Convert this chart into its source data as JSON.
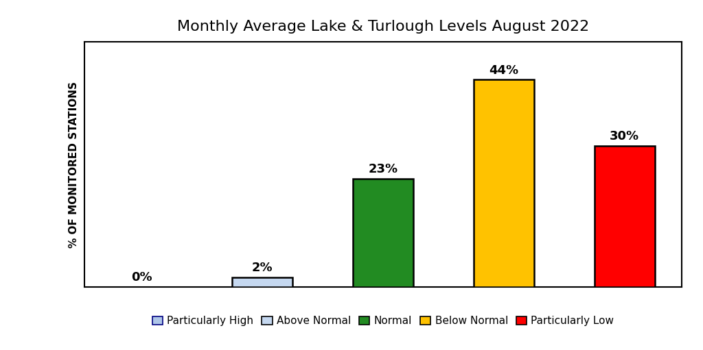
{
  "title": "Monthly Average Lake & Turlough Levels August 2022",
  "categories": [
    "Particularly High",
    "Above Normal",
    "Normal",
    "Below Normal",
    "Particularly Low"
  ],
  "values": [
    0,
    2,
    23,
    44,
    30
  ],
  "bar_colors": [
    "#aec6e8",
    "#c5d8f0",
    "#228B22",
    "#FFC200",
    "#FF0000"
  ],
  "bar_edge_colors": [
    "#000000",
    "#000000",
    "#000000",
    "#000000",
    "#000000"
  ],
  "ylabel": "% OF MONITORED STATIONS",
  "ylim": [
    0,
    52
  ],
  "labels": [
    "0%",
    "2%",
    "23%",
    "44%",
    "30%"
  ],
  "label_fontsize": 13,
  "title_fontsize": 16,
  "ylabel_fontsize": 11,
  "legend_fontsize": 11,
  "background_color": "#ffffff",
  "bar_width": 0.5,
  "legend_colors": [
    "#aec6e8",
    "#c5d8f0",
    "#228B22",
    "#FFC200",
    "#FF0000"
  ],
  "legend_edge_colors": [
    "#000080",
    "#000000",
    "#000000",
    "#000000",
    "#000000"
  ]
}
